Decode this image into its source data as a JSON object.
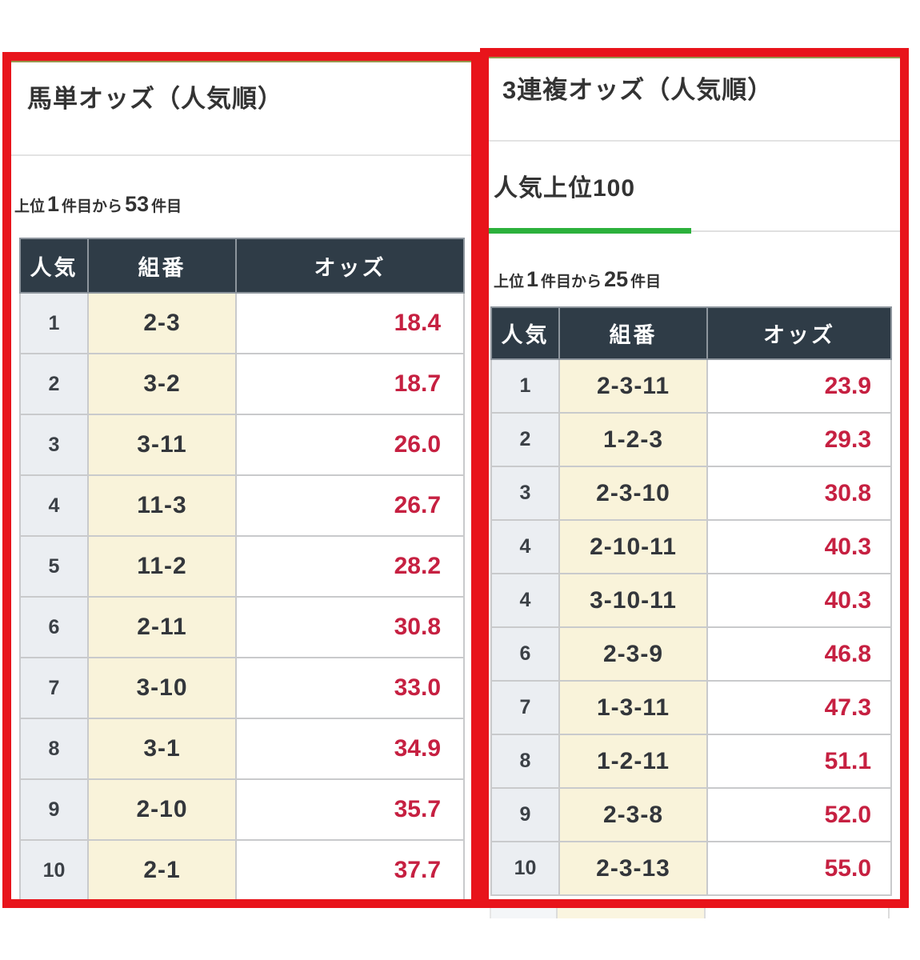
{
  "colors": {
    "annotation_red": "#e8141b",
    "odds_red": "#c62041",
    "header_bg": "#2f3c47",
    "rank_column_bg": "#ebeef2",
    "combo_column_bg": "#f9f3da",
    "tab_active_green": "#2cb13c",
    "top_accent_olive": "#97974e"
  },
  "left_panel": {
    "title": "馬単オッズ（人気順）",
    "range": {
      "prefix": "上位",
      "from": "1",
      "unit_from": "件目から",
      "to": "53",
      "unit_to": "件目"
    },
    "table": {
      "headers": [
        "人気",
        "組番",
        "オッズ"
      ],
      "rows": [
        {
          "rank": "1",
          "combo": "2-3",
          "odds": "18.4"
        },
        {
          "rank": "2",
          "combo": "3-2",
          "odds": "18.7"
        },
        {
          "rank": "3",
          "combo": "3-11",
          "odds": "26.0"
        },
        {
          "rank": "4",
          "combo": "11-3",
          "odds": "26.7"
        },
        {
          "rank": "5",
          "combo": "11-2",
          "odds": "28.2"
        },
        {
          "rank": "6",
          "combo": "2-11",
          "odds": "30.8"
        },
        {
          "rank": "7",
          "combo": "3-10",
          "odds": "33.0"
        },
        {
          "rank": "8",
          "combo": "3-1",
          "odds": "34.9"
        },
        {
          "rank": "9",
          "combo": "2-10",
          "odds": "35.7"
        },
        {
          "rank": "10",
          "combo": "2-1",
          "odds": "37.7"
        }
      ]
    }
  },
  "right_panel": {
    "title": "3連複オッズ（人気順）",
    "tab_label": "人気上位100",
    "range": {
      "prefix": "上位",
      "from": "1",
      "unit_from": "件目から",
      "to": "25",
      "unit_to": "件目"
    },
    "table": {
      "headers": [
        "人気",
        "組番",
        "オッズ"
      ],
      "rows": [
        {
          "rank": "1",
          "combo": "2-3-11",
          "odds": "23.9"
        },
        {
          "rank": "2",
          "combo": "1-2-3",
          "odds": "29.3"
        },
        {
          "rank": "3",
          "combo": "2-3-10",
          "odds": "30.8"
        },
        {
          "rank": "4",
          "combo": "2-10-11",
          "odds": "40.3"
        },
        {
          "rank": "4",
          "combo": "3-10-11",
          "odds": "40.3"
        },
        {
          "rank": "6",
          "combo": "2-3-9",
          "odds": "46.8"
        },
        {
          "rank": "7",
          "combo": "1-3-11",
          "odds": "47.3"
        },
        {
          "rank": "8",
          "combo": "1-2-11",
          "odds": "51.1"
        },
        {
          "rank": "9",
          "combo": "2-3-8",
          "odds": "52.0"
        },
        {
          "rank": "10",
          "combo": "2-3-13",
          "odds": "55.0"
        }
      ]
    }
  }
}
